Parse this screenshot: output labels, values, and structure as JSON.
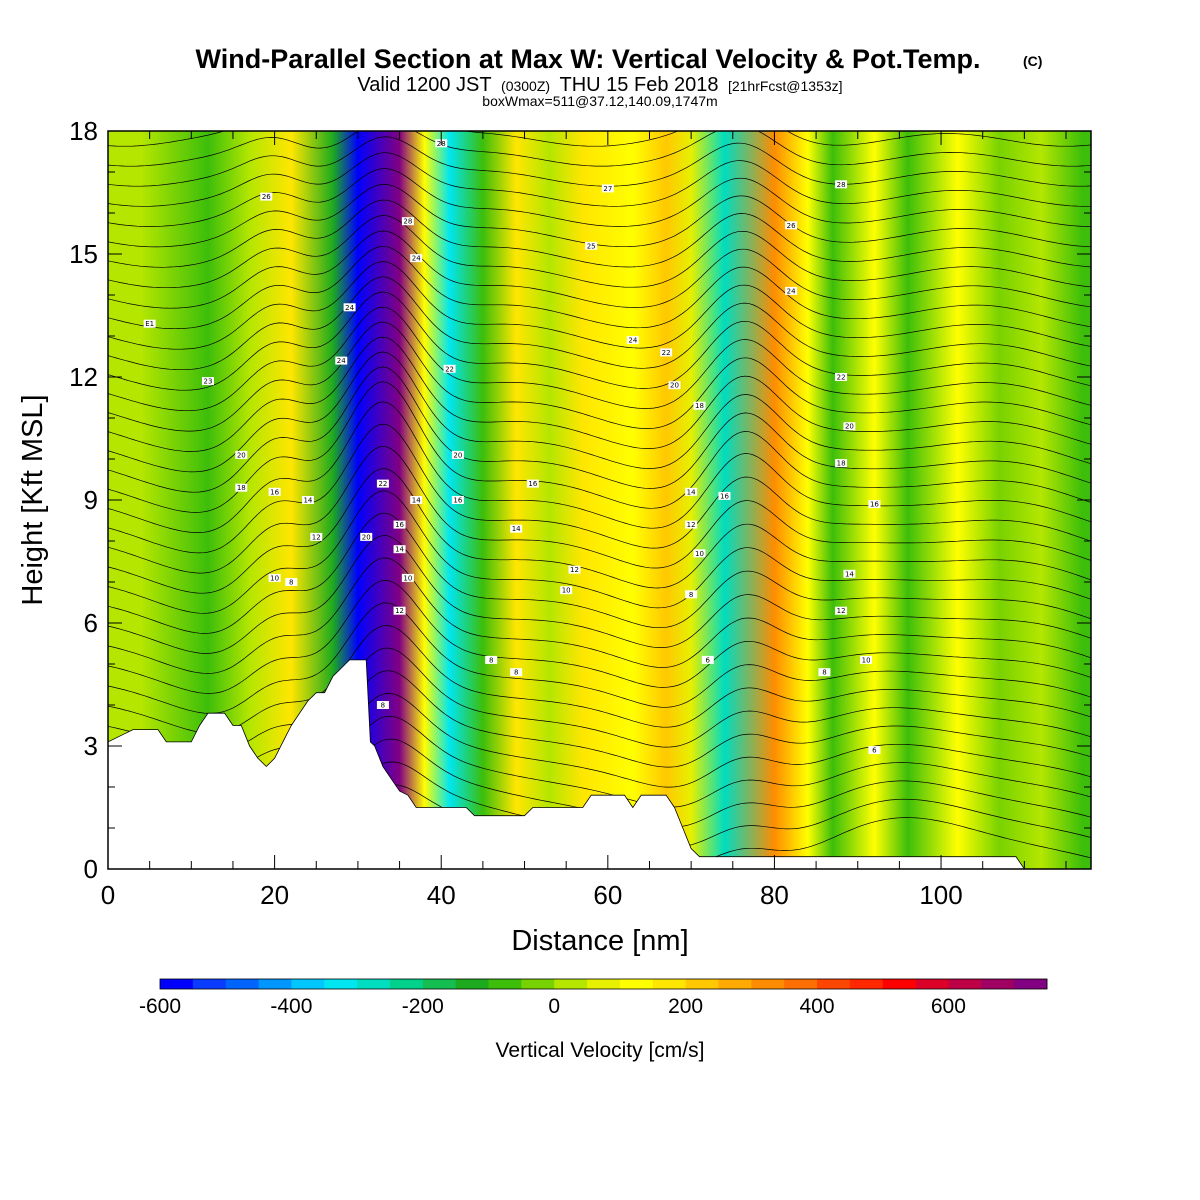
{
  "chart_data": {
    "type": "heatmap",
    "title": "Wind-Parallel Section at Max W: Vertical Velocity & Pot.Temp.",
    "title_mark": "(C)",
    "subtitle_main": "Valid 1200 JST",
    "subtitle_utc": "(0300Z)",
    "subtitle_date": "THU 15 Feb 2018",
    "subtitle_fcst": "[21hrFcst@1353z]",
    "subtitle2": "boxWmax=511@37.12,140.09,1747m",
    "xlabel": "Distance [nm]",
    "ylabel": "Height [Kft MSL]",
    "xlim": [
      0,
      118
    ],
    "ylim": [
      0,
      18
    ],
    "x_ticks": [
      0,
      20,
      40,
      60,
      80,
      100
    ],
    "y_ticks": [
      0,
      3,
      6,
      9,
      12,
      15,
      18
    ],
    "colorbar": {
      "label": "Vertical Velocity [cm/s]",
      "range": [
        -600,
        750
      ],
      "step": 50,
      "tick_values": [
        -600,
        -400,
        -200,
        0,
        200,
        400,
        600
      ],
      "colors": [
        "#0000ff",
        "#0a3cff",
        "#0064ff",
        "#0096ff",
        "#00c8ff",
        "#00e6f0",
        "#00dcc0",
        "#00d28c",
        "#14be50",
        "#1eaa1e",
        "#3cbe0a",
        "#78d200",
        "#b4e600",
        "#e6f000",
        "#ffff00",
        "#ffe600",
        "#ffc800",
        "#ffaa00",
        "#ff8c00",
        "#ff6e00",
        "#ff4600",
        "#ff2800",
        "#ff0000",
        "#dc0028",
        "#be0046",
        "#a00064",
        "#820082"
      ]
    },
    "wave_bands": [
      {
        "x": 4,
        "w": 40
      },
      {
        "x": 12,
        "w": -60
      },
      {
        "x": 17,
        "w": 30
      },
      {
        "x": 22,
        "w": 180
      },
      {
        "x": 27,
        "w": -120
      },
      {
        "x": 30,
        "w": -560
      },
      {
        "x": 35,
        "w": 700
      },
      {
        "x": 38,
        "w": 140
      },
      {
        "x": 41,
        "w": -330
      },
      {
        "x": 45,
        "w": -60
      },
      {
        "x": 49,
        "w": 170
      },
      {
        "x": 53,
        "w": 30
      },
      {
        "x": 57,
        "w": 180
      },
      {
        "x": 63,
        "w": 110
      },
      {
        "x": 67,
        "w": 200
      },
      {
        "x": 70,
        "w": 60
      },
      {
        "x": 74,
        "w": -300
      },
      {
        "x": 80,
        "w": 330
      },
      {
        "x": 84,
        "w": 140
      },
      {
        "x": 87,
        "w": -90
      },
      {
        "x": 92,
        "w": 140
      },
      {
        "x": 96,
        "w": -60
      },
      {
        "x": 102,
        "w": 110
      },
      {
        "x": 107,
        "w": -30
      },
      {
        "x": 112,
        "w": 40
      },
      {
        "x": 117,
        "w": -60
      }
    ],
    "terrain": [
      [
        0,
        3.1
      ],
      [
        2,
        3.3
      ],
      [
        3,
        3.4
      ],
      [
        6,
        3.4
      ],
      [
        7,
        3.1
      ],
      [
        10,
        3.1
      ],
      [
        11,
        3.5
      ],
      [
        12,
        3.8
      ],
      [
        14,
        3.8
      ],
      [
        15,
        3.5
      ],
      [
        16,
        3.5
      ],
      [
        17,
        3.0
      ],
      [
        18,
        2.7
      ],
      [
        19,
        2.5
      ],
      [
        20,
        2.7
      ],
      [
        21,
        3.1
      ],
      [
        22,
        3.5
      ],
      [
        23,
        3.8
      ],
      [
        24,
        4.1
      ],
      [
        25,
        4.3
      ],
      [
        26,
        4.3
      ],
      [
        27,
        4.7
      ],
      [
        28,
        4.9
      ],
      [
        29,
        5.1
      ],
      [
        31,
        5.1
      ],
      [
        31.5,
        3.1
      ],
      [
        32,
        3.0
      ],
      [
        33,
        2.5
      ],
      [
        34,
        2.2
      ],
      [
        35,
        1.9
      ],
      [
        36,
        1.8
      ],
      [
        37,
        1.5
      ],
      [
        43,
        1.5
      ],
      [
        44,
        1.3
      ],
      [
        50,
        1.3
      ],
      [
        51,
        1.5
      ],
      [
        57,
        1.5
      ],
      [
        58,
        1.8
      ],
      [
        62,
        1.8
      ],
      [
        63,
        1.5
      ],
      [
        64,
        1.8
      ],
      [
        67,
        1.8
      ],
      [
        68,
        1.5
      ],
      [
        69,
        1.0
      ],
      [
        70,
        0.5
      ],
      [
        71,
        0.3
      ],
      [
        109,
        0.3
      ],
      [
        110,
        0.0
      ],
      [
        118,
        0.0
      ]
    ],
    "theta_contour_labels": [
      {
        "x": 5,
        "y": 13.3,
        "text": "E1"
      },
      {
        "x": 12,
        "y": 11.9,
        "text": "23"
      },
      {
        "x": 16,
        "y": 10.1,
        "text": "20"
      },
      {
        "x": 16,
        "y": 9.3,
        "text": "18"
      },
      {
        "x": 20,
        "y": 9.2,
        "text": "16"
      },
      {
        "x": 24,
        "y": 9.0,
        "text": "14"
      },
      {
        "x": 25,
        "y": 8.1,
        "text": "12"
      },
      {
        "x": 20,
        "y": 7.1,
        "text": "10"
      },
      {
        "x": 22,
        "y": 7.0,
        "text": "8"
      },
      {
        "x": 19,
        "y": 16.4,
        "text": "26"
      },
      {
        "x": 29,
        "y": 13.7,
        "text": "24"
      },
      {
        "x": 28,
        "y": 12.4,
        "text": "24"
      },
      {
        "x": 33,
        "y": 9.4,
        "text": "22"
      },
      {
        "x": 31,
        "y": 8.1,
        "text": "20"
      },
      {
        "x": 35,
        "y": 8.4,
        "text": "16"
      },
      {
        "x": 35,
        "y": 7.8,
        "text": "14"
      },
      {
        "x": 36,
        "y": 7.1,
        "text": "10"
      },
      {
        "x": 35,
        "y": 6.3,
        "text": "12"
      },
      {
        "x": 33,
        "y": 4.0,
        "text": "8"
      },
      {
        "x": 36,
        "y": 15.8,
        "text": "28"
      },
      {
        "x": 37,
        "y": 14.9,
        "text": "24"
      },
      {
        "x": 40,
        "y": 17.7,
        "text": "28"
      },
      {
        "x": 37,
        "y": 9.0,
        "text": "14"
      },
      {
        "x": 41,
        "y": 12.2,
        "text": "22"
      },
      {
        "x": 42,
        "y": 10.1,
        "text": "20"
      },
      {
        "x": 42,
        "y": 9.0,
        "text": "16"
      },
      {
        "x": 51,
        "y": 9.4,
        "text": "16"
      },
      {
        "x": 49,
        "y": 8.3,
        "text": "14"
      },
      {
        "x": 56,
        "y": 7.3,
        "text": "12"
      },
      {
        "x": 55,
        "y": 6.8,
        "text": "10"
      },
      {
        "x": 46,
        "y": 5.1,
        "text": "8"
      },
      {
        "x": 49,
        "y": 4.8,
        "text": "8"
      },
      {
        "x": 60,
        "y": 16.6,
        "text": "27"
      },
      {
        "x": 58,
        "y": 15.2,
        "text": "25"
      },
      {
        "x": 63,
        "y": 12.9,
        "text": "24"
      },
      {
        "x": 67,
        "y": 12.6,
        "text": "22"
      },
      {
        "x": 68,
        "y": 11.8,
        "text": "20"
      },
      {
        "x": 71,
        "y": 11.3,
        "text": "18"
      },
      {
        "x": 70,
        "y": 9.2,
        "text": "14"
      },
      {
        "x": 74,
        "y": 9.1,
        "text": "16"
      },
      {
        "x": 70,
        "y": 8.4,
        "text": "12"
      },
      {
        "x": 71,
        "y": 7.7,
        "text": "10"
      },
      {
        "x": 70,
        "y": 6.7,
        "text": "8"
      },
      {
        "x": 72,
        "y": 5.1,
        "text": "6"
      },
      {
        "x": 82,
        "y": 15.7,
        "text": "26"
      },
      {
        "x": 82,
        "y": 14.1,
        "text": "24"
      },
      {
        "x": 88,
        "y": 16.7,
        "text": "28"
      },
      {
        "x": 88,
        "y": 12.0,
        "text": "22"
      },
      {
        "x": 89,
        "y": 10.8,
        "text": "20"
      },
      {
        "x": 88,
        "y": 9.9,
        "text": "18"
      },
      {
        "x": 92,
        "y": 8.9,
        "text": "16"
      },
      {
        "x": 89,
        "y": 7.2,
        "text": "14"
      },
      {
        "x": 88,
        "y": 6.3,
        "text": "12"
      },
      {
        "x": 91,
        "y": 5.1,
        "text": "10"
      },
      {
        "x": 86,
        "y": 4.8,
        "text": "8"
      },
      {
        "x": 92,
        "y": 2.9,
        "text": "6"
      }
    ]
  }
}
